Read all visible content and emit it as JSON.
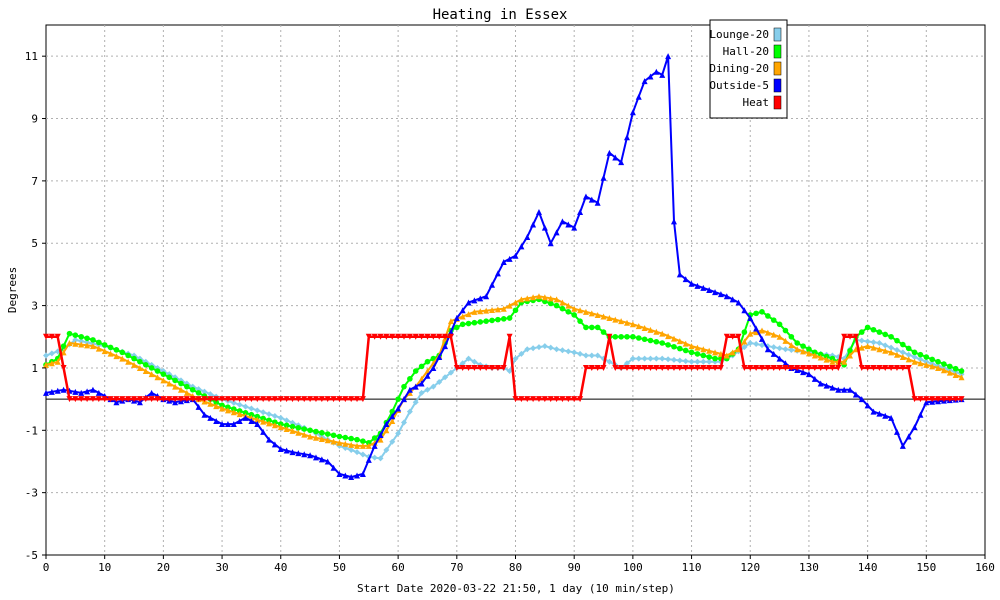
{
  "chart_data": {
    "type": "line",
    "title": "Heating in Essex",
    "xlabel": "Start Date 2020-03-22 21:50, 1 day (10 min/step)",
    "ylabel": "Degrees",
    "xlim": [
      0,
      160
    ],
    "ylim": [
      -5,
      12
    ],
    "xticks": [
      0,
      10,
      20,
      30,
      40,
      50,
      60,
      70,
      80,
      90,
      100,
      110,
      120,
      130,
      140,
      150,
      160
    ],
    "yticks": [
      -5,
      -3,
      -1,
      1,
      3,
      5,
      7,
      9,
      11
    ],
    "grid": true,
    "legend_position": "top-right",
    "series": [
      {
        "name": "Lounge-20",
        "color": "#87ceeb",
        "marker": "diamond",
        "points": [
          [
            0,
            1.4
          ],
          [
            3,
            1.6
          ],
          [
            5,
            1.9
          ],
          [
            10,
            1.7
          ],
          [
            15,
            1.4
          ],
          [
            20,
            0.9
          ],
          [
            25,
            0.4
          ],
          [
            30,
            0.0
          ],
          [
            35,
            -0.3
          ],
          [
            40,
            -0.6
          ],
          [
            45,
            -1.0
          ],
          [
            50,
            -1.5
          ],
          [
            53,
            -1.7
          ],
          [
            55,
            -1.85
          ],
          [
            57,
            -1.9
          ],
          [
            60,
            -1.1
          ],
          [
            62,
            -0.4
          ],
          [
            64,
            0.2
          ],
          [
            66,
            0.4
          ],
          [
            68,
            0.7
          ],
          [
            70,
            1.0
          ],
          [
            72,
            1.3
          ],
          [
            74,
            1.1
          ],
          [
            76,
            1.0
          ],
          [
            78,
            1.0
          ],
          [
            79,
            0.9
          ],
          [
            80,
            1.3
          ],
          [
            82,
            1.6
          ],
          [
            85,
            1.7
          ],
          [
            87,
            1.6
          ],
          [
            90,
            1.5
          ],
          [
            92,
            1.4
          ],
          [
            94,
            1.4
          ],
          [
            96,
            1.2
          ],
          [
            98,
            1.0
          ],
          [
            100,
            1.3
          ],
          [
            105,
            1.3
          ],
          [
            110,
            1.2
          ],
          [
            115,
            1.2
          ],
          [
            117,
            1.4
          ],
          [
            120,
            1.8
          ],
          [
            123,
            1.7
          ],
          [
            126,
            1.6
          ],
          [
            130,
            1.5
          ],
          [
            134,
            1.4
          ],
          [
            136,
            1.3
          ],
          [
            138,
            1.9
          ],
          [
            142,
            1.8
          ],
          [
            146,
            1.5
          ],
          [
            150,
            1.2
          ],
          [
            156,
            0.8
          ]
        ]
      },
      {
        "name": "Hall-20",
        "color": "#00ff00",
        "marker": "circle",
        "points": [
          [
            0,
            1.1
          ],
          [
            2,
            1.3
          ],
          [
            4,
            2.1
          ],
          [
            8,
            1.9
          ],
          [
            13,
            1.5
          ],
          [
            18,
            1.0
          ],
          [
            22,
            0.6
          ],
          [
            26,
            0.2
          ],
          [
            30,
            -0.2
          ],
          [
            35,
            -0.5
          ],
          [
            40,
            -0.8
          ],
          [
            45,
            -1.0
          ],
          [
            50,
            -1.2
          ],
          [
            53,
            -1.3
          ],
          [
            55,
            -1.4
          ],
          [
            57,
            -1.1
          ],
          [
            59,
            -0.4
          ],
          [
            61,
            0.4
          ],
          [
            63,
            0.9
          ],
          [
            65,
            1.2
          ],
          [
            67,
            1.4
          ],
          [
            69,
            2.2
          ],
          [
            71,
            2.4
          ],
          [
            75,
            2.5
          ],
          [
            79,
            2.6
          ],
          [
            81,
            3.1
          ],
          [
            84,
            3.2
          ],
          [
            87,
            3.0
          ],
          [
            90,
            2.7
          ],
          [
            92,
            2.3
          ],
          [
            94,
            2.3
          ],
          [
            96,
            2.0
          ],
          [
            98,
            2.0
          ],
          [
            100,
            2.0
          ],
          [
            105,
            1.8
          ],
          [
            110,
            1.5
          ],
          [
            114,
            1.3
          ],
          [
            116,
            1.3
          ],
          [
            118,
            1.6
          ],
          [
            120,
            2.7
          ],
          [
            122,
            2.8
          ],
          [
            125,
            2.4
          ],
          [
            128,
            1.8
          ],
          [
            131,
            1.5
          ],
          [
            134,
            1.3
          ],
          [
            136,
            1.1
          ],
          [
            138,
            2.0
          ],
          [
            140,
            2.3
          ],
          [
            144,
            2.0
          ],
          [
            148,
            1.5
          ],
          [
            152,
            1.2
          ],
          [
            156,
            0.9
          ]
        ]
      },
      {
        "name": "Dining-20",
        "color": "#ffa500",
        "marker": "triangle",
        "points": [
          [
            0,
            1.1
          ],
          [
            2,
            1.2
          ],
          [
            4,
            1.8
          ],
          [
            8,
            1.7
          ],
          [
            13,
            1.3
          ],
          [
            18,
            0.8
          ],
          [
            22,
            0.4
          ],
          [
            26,
            0.0
          ],
          [
            30,
            -0.3
          ],
          [
            35,
            -0.6
          ],
          [
            40,
            -0.9
          ],
          [
            45,
            -1.2
          ],
          [
            50,
            -1.4
          ],
          [
            53,
            -1.5
          ],
          [
            55,
            -1.5
          ],
          [
            57,
            -1.3
          ],
          [
            59,
            -0.7
          ],
          [
            61,
            0.0
          ],
          [
            63,
            0.4
          ],
          [
            65,
            0.9
          ],
          [
            67,
            1.4
          ],
          [
            69,
            2.5
          ],
          [
            73,
            2.8
          ],
          [
            78,
            2.9
          ],
          [
            81,
            3.2
          ],
          [
            84,
            3.3
          ],
          [
            87,
            3.2
          ],
          [
            90,
            2.9
          ],
          [
            94,
            2.7
          ],
          [
            100,
            2.4
          ],
          [
            105,
            2.1
          ],
          [
            110,
            1.7
          ],
          [
            114,
            1.5
          ],
          [
            116,
            1.4
          ],
          [
            118,
            1.6
          ],
          [
            120,
            2.1
          ],
          [
            122,
            2.2
          ],
          [
            125,
            2.0
          ],
          [
            128,
            1.6
          ],
          [
            131,
            1.4
          ],
          [
            134,
            1.2
          ],
          [
            136,
            1.2
          ],
          [
            138,
            1.6
          ],
          [
            140,
            1.7
          ],
          [
            144,
            1.5
          ],
          [
            148,
            1.2
          ],
          [
            152,
            1.0
          ],
          [
            156,
            0.7
          ]
        ]
      },
      {
        "name": "Outside-5",
        "color": "#0000ff",
        "marker": "triangle",
        "points": [
          [
            0,
            0.2
          ],
          [
            3,
            0.3
          ],
          [
            6,
            0.2
          ],
          [
            8,
            0.3
          ],
          [
            10,
            0.1
          ],
          [
            12,
            -0.1
          ],
          [
            14,
            0.0
          ],
          [
            16,
            -0.1
          ],
          [
            18,
            0.2
          ],
          [
            20,
            0.0
          ],
          [
            22,
            -0.1
          ],
          [
            25,
            0.0
          ],
          [
            27,
            -0.5
          ],
          [
            30,
            -0.8
          ],
          [
            32,
            -0.8
          ],
          [
            34,
            -0.6
          ],
          [
            36,
            -0.8
          ],
          [
            38,
            -1.3
          ],
          [
            40,
            -1.6
          ],
          [
            42,
            -1.7
          ],
          [
            45,
            -1.8
          ],
          [
            48,
            -2.0
          ],
          [
            50,
            -2.4
          ],
          [
            52,
            -2.5
          ],
          [
            54,
            -2.4
          ],
          [
            56,
            -1.5
          ],
          [
            58,
            -0.8
          ],
          [
            60,
            -0.3
          ],
          [
            62,
            0.3
          ],
          [
            64,
            0.5
          ],
          [
            66,
            1.0
          ],
          [
            68,
            1.7
          ],
          [
            70,
            2.6
          ],
          [
            72,
            3.1
          ],
          [
            75,
            3.3
          ],
          [
            78,
            4.4
          ],
          [
            80,
            4.6
          ],
          [
            82,
            5.2
          ],
          [
            84,
            6.0
          ],
          [
            86,
            5.0
          ],
          [
            88,
            5.7
          ],
          [
            90,
            5.5
          ],
          [
            92,
            6.5
          ],
          [
            94,
            6.3
          ],
          [
            96,
            7.9
          ],
          [
            98,
            7.6
          ],
          [
            100,
            9.2
          ],
          [
            102,
            10.2
          ],
          [
            104,
            10.5
          ],
          [
            105,
            10.4
          ],
          [
            106,
            11.0
          ],
          [
            107,
            5.7
          ],
          [
            108,
            4.0
          ],
          [
            110,
            3.7
          ],
          [
            113,
            3.5
          ],
          [
            116,
            3.3
          ],
          [
            118,
            3.1
          ],
          [
            120,
            2.6
          ],
          [
            123,
            1.6
          ],
          [
            127,
            1.0
          ],
          [
            130,
            0.8
          ],
          [
            132,
            0.5
          ],
          [
            135,
            0.3
          ],
          [
            137,
            0.3
          ],
          [
            139,
            0.0
          ],
          [
            141,
            -0.4
          ],
          [
            144,
            -0.6
          ],
          [
            146,
            -1.5
          ],
          [
            148,
            -0.9
          ],
          [
            150,
            -0.1
          ],
          [
            156,
            0.0
          ]
        ]
      },
      {
        "name": "Heat",
        "color": "#ff0000",
        "marker": "invtriangle",
        "points": [
          [
            0,
            2.0
          ],
          [
            2,
            2.0
          ],
          [
            3,
            1.0
          ],
          [
            4,
            0.0
          ],
          [
            54,
            0.0
          ],
          [
            55,
            2.0
          ],
          [
            69,
            2.0
          ],
          [
            70,
            1.0
          ],
          [
            78,
            1.0
          ],
          [
            79,
            2.0
          ],
          [
            80,
            0.0
          ],
          [
            91,
            0.0
          ],
          [
            92,
            1.0
          ],
          [
            95,
            1.0
          ],
          [
            96,
            2.0
          ],
          [
            97,
            1.0
          ],
          [
            115,
            1.0
          ],
          [
            116,
            2.0
          ],
          [
            118,
            2.0
          ],
          [
            119,
            1.0
          ],
          [
            135,
            1.0
          ],
          [
            136,
            2.0
          ],
          [
            138,
            2.0
          ],
          [
            139,
            1.0
          ],
          [
            147,
            1.0
          ],
          [
            148,
            0.0
          ],
          [
            156,
            0.0
          ]
        ]
      }
    ]
  }
}
